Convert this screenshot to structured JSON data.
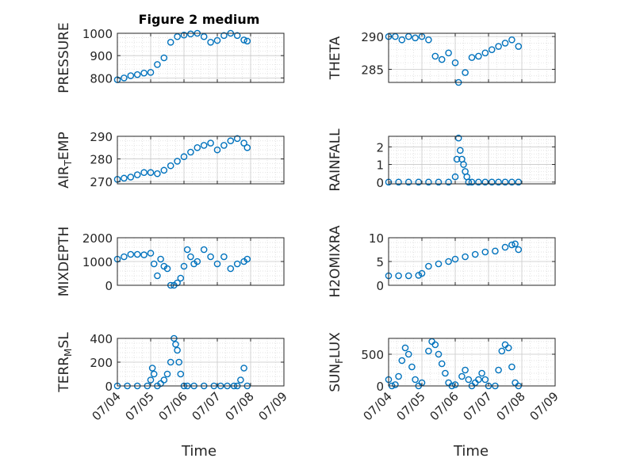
{
  "figure": {
    "title": "Figure 2 medium",
    "xlabel": "Time"
  },
  "colors": {
    "marker": "#0072BD",
    "axis": "#262626",
    "grid": "#d9d9d9",
    "background": "#ffffff"
  },
  "chart_data": [
    {
      "type": "scatter",
      "name": "PRESSURE",
      "ylabel": "PRESSURE",
      "ylim": [
        780,
        1000
      ],
      "yticks": [
        800,
        900,
        1000
      ],
      "xlim": [
        "07/04",
        "07/09"
      ],
      "xticks": [
        "07/04",
        "07/05",
        "07/06",
        "07/07",
        "07/08",
        "07/09"
      ],
      "title": "Figure 2 medium",
      "series": [
        {
          "x_days": [
            0.0,
            0.2,
            0.4,
            0.6,
            0.8,
            1.0,
            1.2,
            1.4,
            1.6,
            1.8,
            2.0,
            2.2,
            2.4,
            2.6,
            2.8,
            3.0,
            3.2,
            3.4,
            3.6,
            3.8,
            3.9
          ],
          "values": [
            792,
            800,
            810,
            815,
            822,
            825,
            860,
            890,
            960,
            985,
            992,
            997,
            1000,
            985,
            960,
            968,
            990,
            1000,
            990,
            970,
            965
          ]
        }
      ]
    },
    {
      "type": "scatter",
      "name": "THETA",
      "ylabel": "THETA",
      "ylim": [
        283,
        290.5
      ],
      "yticks": [
        285,
        290
      ],
      "xlim": [
        "07/04",
        "07/09"
      ],
      "xticks": [
        "07/04",
        "07/05",
        "07/06",
        "07/07",
        "07/08",
        "07/09"
      ],
      "series": [
        {
          "x_days": [
            0.0,
            0.2,
            0.4,
            0.6,
            0.8,
            1.0,
            1.2,
            1.4,
            1.6,
            1.8,
            2.0,
            2.1,
            2.3,
            2.5,
            2.7,
            2.9,
            3.1,
            3.3,
            3.5,
            3.7,
            3.9
          ],
          "values": [
            290,
            290,
            289.5,
            290,
            289.8,
            290,
            289.5,
            287,
            286.5,
            287.5,
            286,
            283,
            284.5,
            286.8,
            287,
            287.5,
            288,
            288.5,
            289,
            289.5,
            288.5
          ]
        }
      ]
    },
    {
      "type": "scatter",
      "name": "AIR_TEMP",
      "ylabel": "AIR_TEMP",
      "ylim": [
        269,
        290
      ],
      "yticks": [
        270,
        280,
        290
      ],
      "xlim": [
        "07/04",
        "07/09"
      ],
      "xticks": [
        "07/04",
        "07/05",
        "07/06",
        "07/07",
        "07/08",
        "07/09"
      ],
      "series": [
        {
          "x_days": [
            0.0,
            0.2,
            0.4,
            0.6,
            0.8,
            1.0,
            1.2,
            1.4,
            1.6,
            1.8,
            2.0,
            2.2,
            2.4,
            2.6,
            2.8,
            3.0,
            3.2,
            3.4,
            3.6,
            3.8,
            3.9
          ],
          "values": [
            271,
            271.5,
            272,
            273,
            274,
            274,
            273.5,
            275,
            277,
            279,
            281,
            283,
            285,
            286,
            287,
            284,
            286,
            288,
            289,
            287,
            285
          ]
        }
      ]
    },
    {
      "type": "scatter",
      "name": "RAINFALL",
      "ylabel": "RAINFALL",
      "ylim": [
        -0.1,
        2.6
      ],
      "yticks": [
        0,
        1,
        2
      ],
      "xlim": [
        "07/04",
        "07/09"
      ],
      "xticks": [
        "07/04",
        "07/05",
        "07/06",
        "07/07",
        "07/08",
        "07/09"
      ],
      "series": [
        {
          "x_days": [
            0.0,
            0.3,
            0.6,
            0.9,
            1.2,
            1.5,
            1.8,
            2.0,
            2.05,
            2.1,
            2.15,
            2.2,
            2.25,
            2.3,
            2.35,
            2.4,
            2.5,
            2.7,
            2.9,
            3.1,
            3.3,
            3.5,
            3.7,
            3.9
          ],
          "values": [
            0,
            0,
            0,
            0,
            0,
            0,
            0,
            0.3,
            1.3,
            2.5,
            1.8,
            1.3,
            1.0,
            0.6,
            0.3,
            0,
            0,
            0,
            0,
            0,
            0,
            0,
            0,
            0
          ]
        }
      ]
    },
    {
      "type": "scatter",
      "name": "MIXDEPTH",
      "ylabel": "MIXDEPTH",
      "ylim": [
        0,
        2000
      ],
      "yticks": [
        0,
        1000,
        2000
      ],
      "xlim": [
        "07/04",
        "07/09"
      ],
      "xticks": [
        "07/04",
        "07/05",
        "07/06",
        "07/07",
        "07/08",
        "07/09"
      ],
      "series": [
        {
          "x_days": [
            0.0,
            0.2,
            0.4,
            0.6,
            0.8,
            1.0,
            1.1,
            1.2,
            1.3,
            1.4,
            1.5,
            1.6,
            1.7,
            1.8,
            1.9,
            2.0,
            2.1,
            2.2,
            2.3,
            2.4,
            2.6,
            2.8,
            3.0,
            3.2,
            3.4,
            3.6,
            3.8,
            3.9
          ],
          "values": [
            1100,
            1200,
            1300,
            1300,
            1280,
            1350,
            900,
            400,
            1100,
            800,
            700,
            0,
            0,
            100,
            300,
            800,
            1500,
            1200,
            900,
            1000,
            1500,
            1200,
            900,
            1200,
            700,
            900,
            1000,
            1100
          ]
        }
      ]
    },
    {
      "type": "scatter",
      "name": "H2OMIXRA",
      "ylabel": "H2OMIXRA",
      "ylim": [
        0,
        10
      ],
      "yticks": [
        0,
        5,
        10
      ],
      "xlim": [
        "07/04",
        "07/09"
      ],
      "xticks": [
        "07/04",
        "07/05",
        "07/06",
        "07/07",
        "07/08",
        "07/09"
      ],
      "series": [
        {
          "x_days": [
            0.0,
            0.3,
            0.6,
            0.9,
            1.0,
            1.2,
            1.5,
            1.8,
            2.0,
            2.3,
            2.6,
            2.9,
            3.2,
            3.5,
            3.7,
            3.8,
            3.9
          ],
          "values": [
            2,
            2,
            2,
            2.1,
            2.5,
            4,
            4.5,
            5,
            5.5,
            6,
            6.5,
            7,
            7.2,
            8,
            8.5,
            8.7,
            7.5
          ]
        }
      ]
    },
    {
      "type": "scatter",
      "name": "TERR_MSL",
      "ylabel": "TERR_MSL",
      "ylim": [
        0,
        400
      ],
      "yticks": [
        0,
        200,
        400
      ],
      "xlim": [
        "07/04",
        "07/09"
      ],
      "xticks": [
        "07/04",
        "07/05",
        "07/06",
        "07/07",
        "07/08",
        "07/09"
      ],
      "series": [
        {
          "x_days": [
            0.0,
            0.3,
            0.6,
            0.9,
            1.0,
            1.05,
            1.1,
            1.2,
            1.3,
            1.4,
            1.5,
            1.6,
            1.7,
            1.75,
            1.8,
            1.85,
            1.9,
            2.0,
            2.1,
            2.3,
            2.6,
            2.9,
            3.1,
            3.3,
            3.5,
            3.6,
            3.7,
            3.8,
            3.9
          ],
          "values": [
            0,
            0,
            0,
            0,
            50,
            150,
            100,
            0,
            20,
            50,
            100,
            200,
            400,
            350,
            300,
            200,
            100,
            0,
            0,
            0,
            0,
            0,
            0,
            0,
            0,
            0,
            50,
            150,
            0
          ]
        }
      ]
    },
    {
      "type": "scatter",
      "name": "SUN_FLUX",
      "ylabel": "SUN_FLUX",
      "ylim": [
        0,
        750
      ],
      "yticks": [
        0,
        500
      ],
      "xlim": [
        "07/04",
        "07/09"
      ],
      "xticks": [
        "07/04",
        "07/05",
        "07/06",
        "07/07",
        "07/08",
        "07/09"
      ],
      "series": [
        {
          "x_days": [
            0.0,
            0.1,
            0.2,
            0.3,
            0.4,
            0.5,
            0.6,
            0.7,
            0.8,
            0.9,
            1.0,
            1.2,
            1.3,
            1.4,
            1.5,
            1.6,
            1.7,
            1.8,
            1.9,
            2.0,
            2.2,
            2.3,
            2.4,
            2.5,
            2.6,
            2.7,
            2.8,
            2.9,
            3.0,
            3.2,
            3.3,
            3.4,
            3.5,
            3.6,
            3.7,
            3.8,
            3.9
          ],
          "values": [
            100,
            0,
            20,
            150,
            400,
            600,
            500,
            300,
            100,
            0,
            50,
            550,
            700,
            650,
            500,
            350,
            200,
            50,
            0,
            20,
            150,
            250,
            100,
            0,
            50,
            100,
            200,
            100,
            0,
            0,
            250,
            550,
            650,
            600,
            300,
            50,
            0
          ]
        }
      ]
    }
  ]
}
